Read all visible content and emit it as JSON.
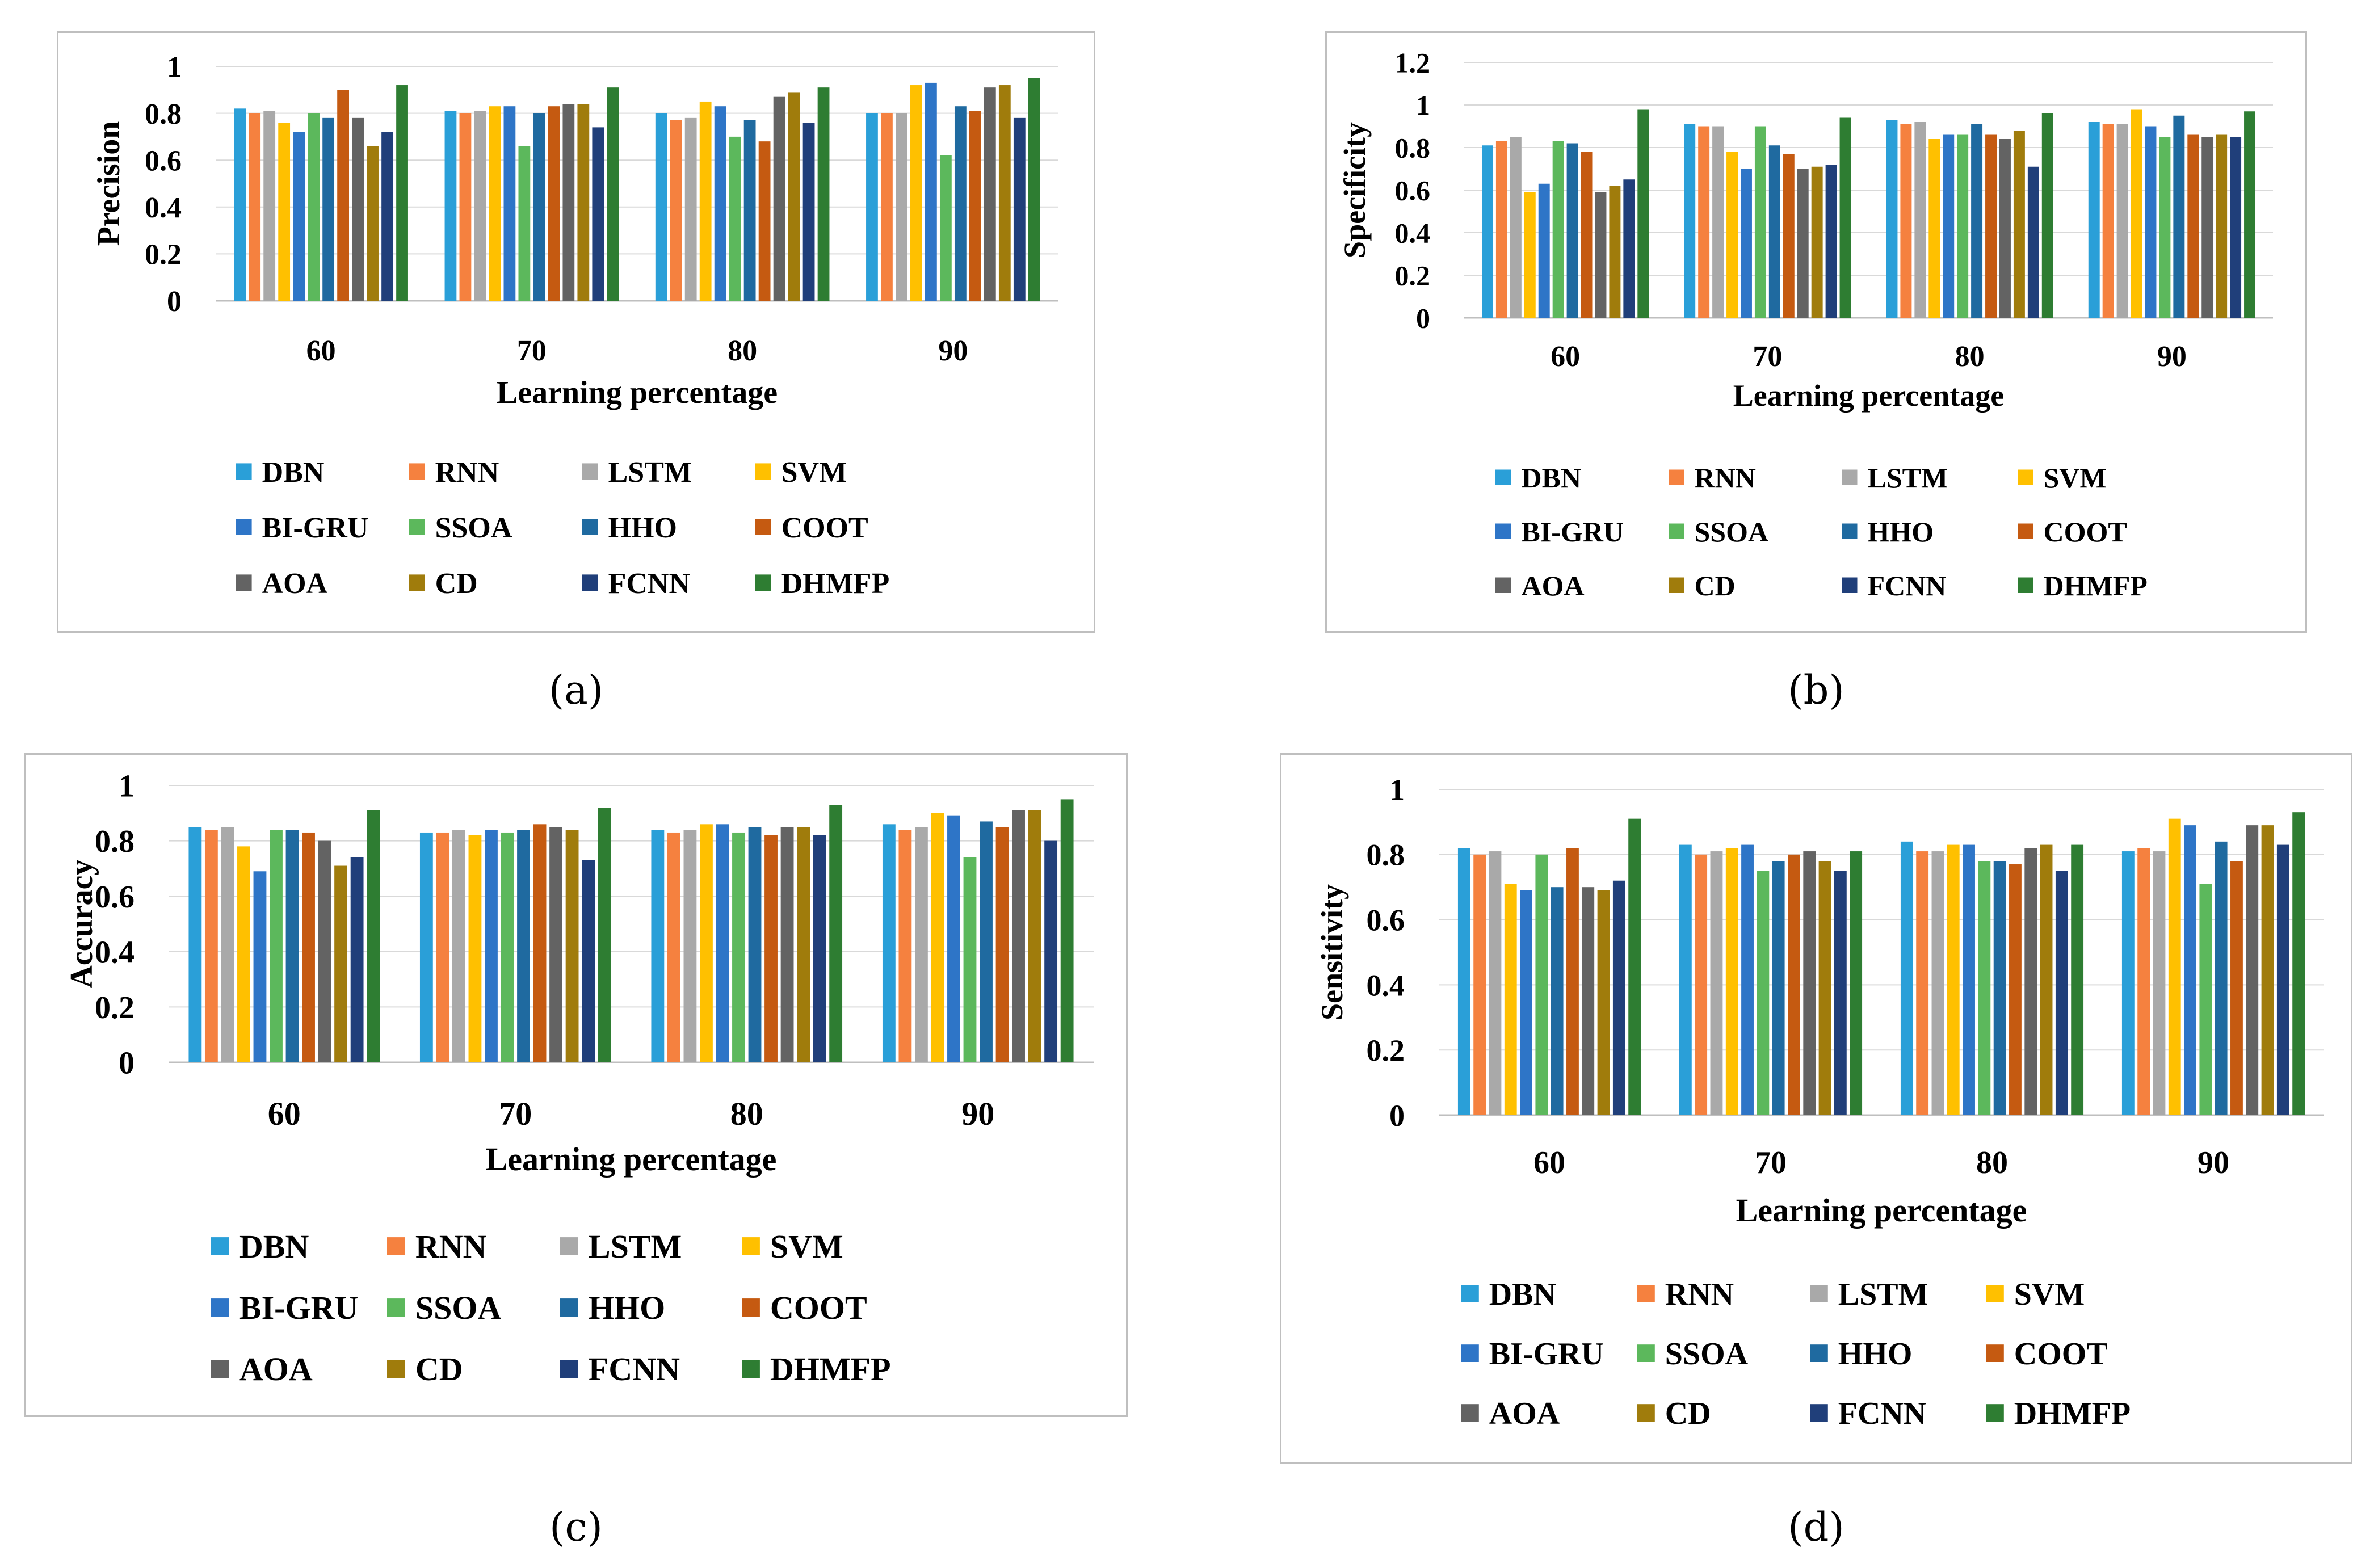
{
  "legend": [
    "DBN",
    "RNN",
    "LSTM",
    "SVM",
    "BI-GRU",
    "SSOA",
    "HHO",
    "COOT",
    "AOA",
    "CD",
    "FCNN",
    "DHMFP"
  ],
  "colors": [
    "#2a9fd8",
    "#f5813f",
    "#a9a9a9",
    "#ffc000",
    "#2e75c7",
    "#5cb85c",
    "#1f6aa0",
    "#c55a11",
    "#636363",
    "#a07c0c",
    "#203f7a",
    "#2e7d32"
  ],
  "chart_data": [
    {
      "type": "bar",
      "panel_label": "(a)",
      "ylabel": "Precision",
      "xlabel": "Learning percentage",
      "categories": [
        "60",
        "70",
        "80",
        "90"
      ],
      "ylim": [
        0,
        1
      ],
      "yticks": [
        "0",
        "0.2",
        "0.4",
        "0.6",
        "0.8",
        "1"
      ],
      "ytick_values": [
        0,
        0.2,
        0.4,
        0.6,
        0.8,
        1
      ],
      "series": [
        {
          "name": "DBN",
          "values": [
            0.82,
            0.81,
            0.8,
            0.8
          ]
        },
        {
          "name": "RNN",
          "values": [
            0.8,
            0.8,
            0.77,
            0.8
          ]
        },
        {
          "name": "LSTM",
          "values": [
            0.81,
            0.81,
            0.78,
            0.8
          ]
        },
        {
          "name": "SVM",
          "values": [
            0.76,
            0.83,
            0.85,
            0.92
          ]
        },
        {
          "name": "BI-GRU",
          "values": [
            0.72,
            0.83,
            0.83,
            0.93
          ]
        },
        {
          "name": "SSOA",
          "values": [
            0.8,
            0.66,
            0.7,
            0.62
          ]
        },
        {
          "name": "HHO",
          "values": [
            0.78,
            0.8,
            0.77,
            0.83
          ]
        },
        {
          "name": "COOT",
          "values": [
            0.9,
            0.83,
            0.68,
            0.81
          ]
        },
        {
          "name": "AOA",
          "values": [
            0.78,
            0.84,
            0.87,
            0.91
          ]
        },
        {
          "name": "CD",
          "values": [
            0.66,
            0.84,
            0.89,
            0.92
          ]
        },
        {
          "name": "FCNN",
          "values": [
            0.72,
            0.74,
            0.76,
            0.78
          ]
        },
        {
          "name": "DHMFP",
          "values": [
            0.92,
            0.91,
            0.91,
            0.95
          ]
        }
      ]
    },
    {
      "type": "bar",
      "panel_label": "(b)",
      "ylabel": "Specificity",
      "xlabel": "Learning percentage",
      "categories": [
        "60",
        "70",
        "80",
        "90"
      ],
      "ylim": [
        0,
        1.2
      ],
      "yticks": [
        "0",
        "0.2",
        "0.4",
        "0.6",
        "0.8",
        "1",
        "1.2"
      ],
      "ytick_values": [
        0,
        0.2,
        0.4,
        0.6,
        0.8,
        1,
        1.2
      ],
      "series": [
        {
          "name": "DBN",
          "values": [
            0.81,
            0.91,
            0.93,
            0.92
          ]
        },
        {
          "name": "RNN",
          "values": [
            0.83,
            0.9,
            0.91,
            0.91
          ]
        },
        {
          "name": "LSTM",
          "values": [
            0.85,
            0.9,
            0.92,
            0.91
          ]
        },
        {
          "name": "SVM",
          "values": [
            0.59,
            0.78,
            0.84,
            0.98
          ]
        },
        {
          "name": "BI-GRU",
          "values": [
            0.63,
            0.7,
            0.86,
            0.9
          ]
        },
        {
          "name": "SSOA",
          "values": [
            0.83,
            0.9,
            0.86,
            0.85
          ]
        },
        {
          "name": "HHO",
          "values": [
            0.82,
            0.81,
            0.91,
            0.95
          ]
        },
        {
          "name": "COOT",
          "values": [
            0.78,
            0.77,
            0.86,
            0.86
          ]
        },
        {
          "name": "AOA",
          "values": [
            0.59,
            0.7,
            0.84,
            0.85
          ]
        },
        {
          "name": "CD",
          "values": [
            0.62,
            0.71,
            0.88,
            0.86
          ]
        },
        {
          "name": "FCNN",
          "values": [
            0.65,
            0.72,
            0.71,
            0.85
          ]
        },
        {
          "name": "DHMFP",
          "values": [
            0.98,
            0.94,
            0.96,
            0.97
          ]
        }
      ]
    },
    {
      "type": "bar",
      "panel_label": "(c)",
      "ylabel": "Accuracy",
      "xlabel": "Learning percentage",
      "categories": [
        "60",
        "70",
        "80",
        "90"
      ],
      "ylim": [
        0,
        1
      ],
      "yticks": [
        "0",
        "0.2",
        "0.4",
        "0.6",
        "0.8",
        "1"
      ],
      "ytick_values": [
        0,
        0.2,
        0.4,
        0.6,
        0.8,
        1
      ],
      "series": [
        {
          "name": "DBN",
          "values": [
            0.85,
            0.83,
            0.84,
            0.86
          ]
        },
        {
          "name": "RNN",
          "values": [
            0.84,
            0.83,
            0.83,
            0.84
          ]
        },
        {
          "name": "LSTM",
          "values": [
            0.85,
            0.84,
            0.84,
            0.85
          ]
        },
        {
          "name": "SVM",
          "values": [
            0.78,
            0.82,
            0.86,
            0.9
          ]
        },
        {
          "name": "BI-GRU",
          "values": [
            0.69,
            0.84,
            0.86,
            0.89
          ]
        },
        {
          "name": "SSOA",
          "values": [
            0.84,
            0.83,
            0.83,
            0.74
          ]
        },
        {
          "name": "HHO",
          "values": [
            0.84,
            0.84,
            0.85,
            0.87
          ]
        },
        {
          "name": "COOT",
          "values": [
            0.83,
            0.86,
            0.82,
            0.85
          ]
        },
        {
          "name": "AOA",
          "values": [
            0.8,
            0.85,
            0.85,
            0.91
          ]
        },
        {
          "name": "CD",
          "values": [
            0.71,
            0.84,
            0.85,
            0.91
          ]
        },
        {
          "name": "FCNN",
          "values": [
            0.74,
            0.73,
            0.82,
            0.8
          ]
        },
        {
          "name": "DHMFP",
          "values": [
            0.91,
            0.92,
            0.93,
            0.95
          ]
        }
      ]
    },
    {
      "type": "bar",
      "panel_label": "(d)",
      "ylabel": "Sensitivity",
      "xlabel": "Learning percentage",
      "categories": [
        "60",
        "70",
        "80",
        "90"
      ],
      "ylim": [
        0,
        1
      ],
      "yticks": [
        "0",
        "0.2",
        "0.4",
        "0.6",
        "0.8",
        "1"
      ],
      "ytick_values": [
        0,
        0.2,
        0.4,
        0.6,
        0.8,
        1
      ],
      "series": [
        {
          "name": "DBN",
          "values": [
            0.82,
            0.83,
            0.84,
            0.81
          ]
        },
        {
          "name": "RNN",
          "values": [
            0.8,
            0.8,
            0.81,
            0.82
          ]
        },
        {
          "name": "LSTM",
          "values": [
            0.81,
            0.81,
            0.81,
            0.81
          ]
        },
        {
          "name": "SVM",
          "values": [
            0.71,
            0.82,
            0.83,
            0.91
          ]
        },
        {
          "name": "BI-GRU",
          "values": [
            0.69,
            0.83,
            0.83,
            0.89
          ]
        },
        {
          "name": "SSOA",
          "values": [
            0.8,
            0.75,
            0.78,
            0.71
          ]
        },
        {
          "name": "HHO",
          "values": [
            0.7,
            0.78,
            0.78,
            0.84
          ]
        },
        {
          "name": "COOT",
          "values": [
            0.82,
            0.8,
            0.77,
            0.78
          ]
        },
        {
          "name": "AOA",
          "values": [
            0.7,
            0.81,
            0.82,
            0.89
          ]
        },
        {
          "name": "CD",
          "values": [
            0.69,
            0.78,
            0.83,
            0.89
          ]
        },
        {
          "name": "FCNN",
          "values": [
            0.72,
            0.75,
            0.75,
            0.83
          ]
        },
        {
          "name": "DHMFP",
          "values": [
            0.91,
            0.81,
            0.83,
            0.93
          ]
        }
      ]
    }
  ]
}
